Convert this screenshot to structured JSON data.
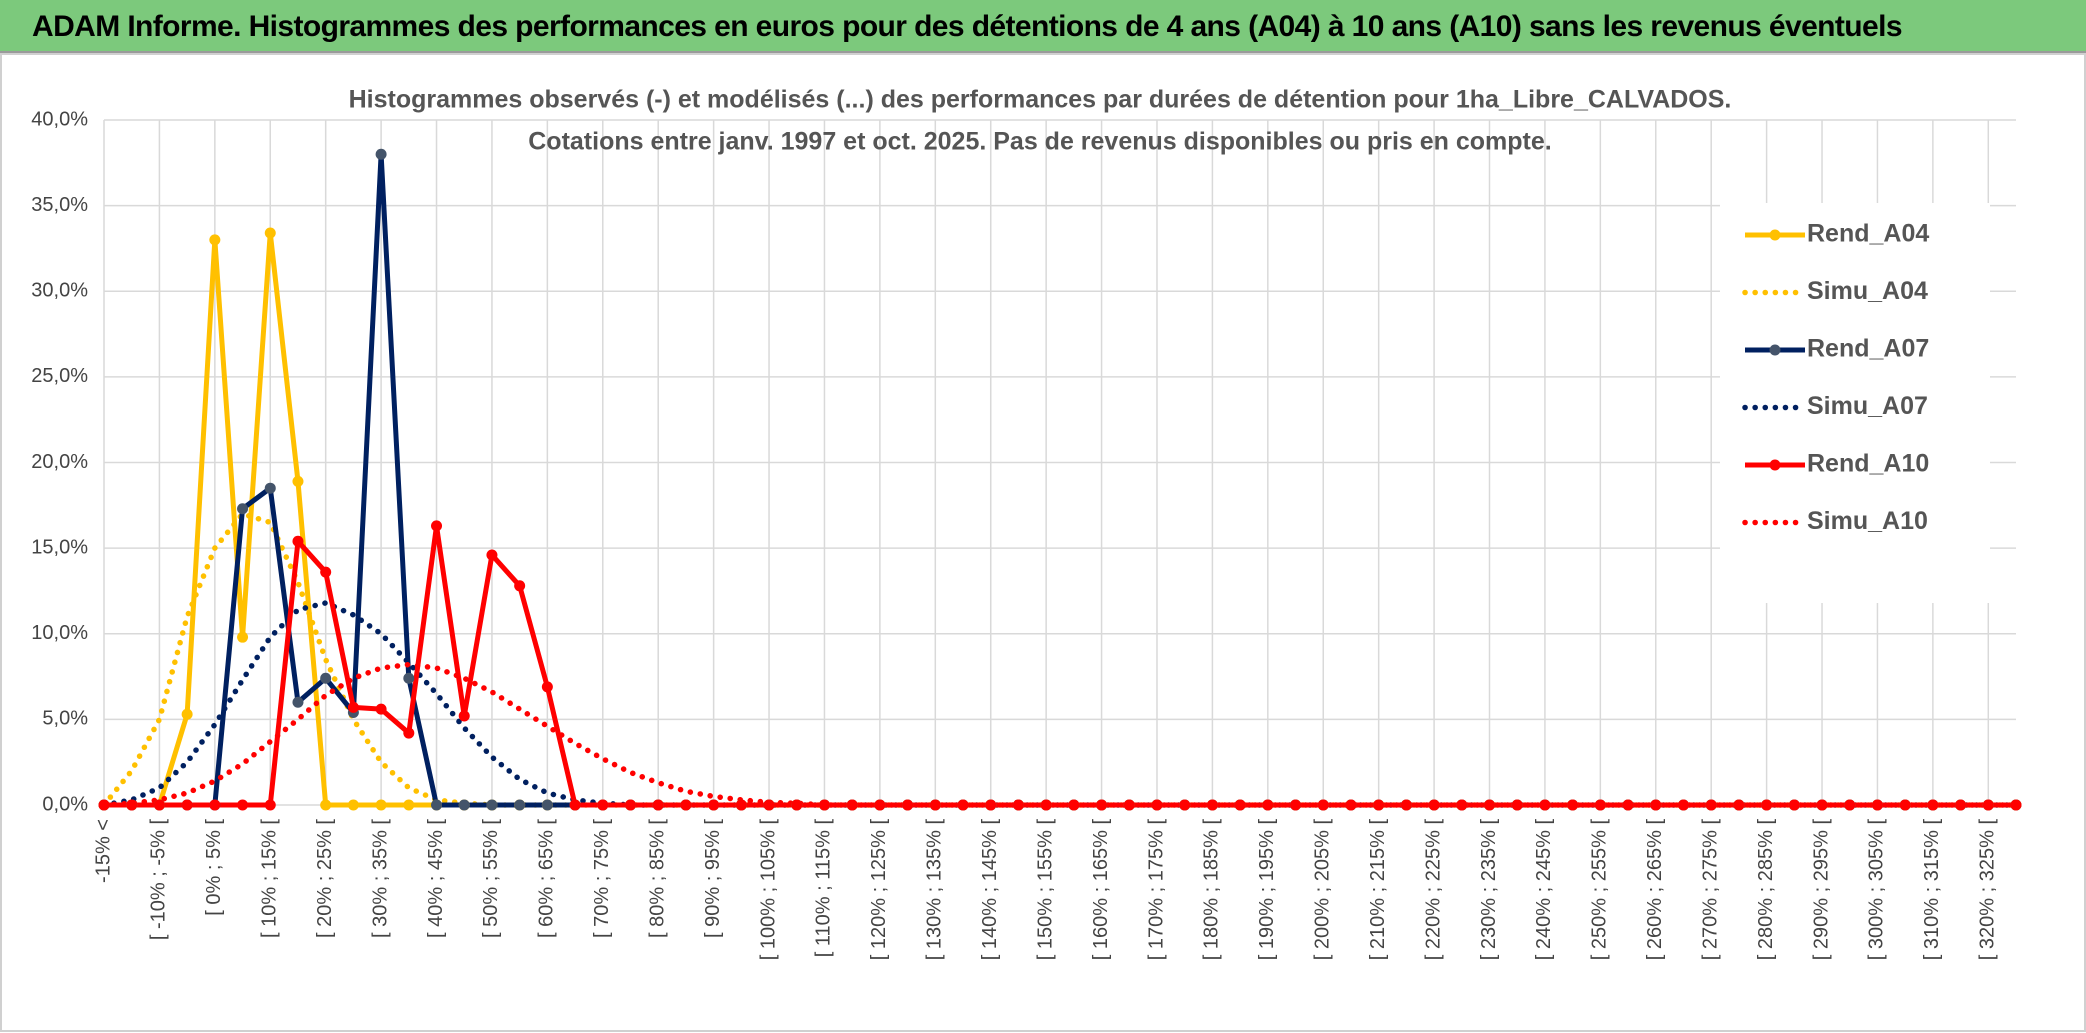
{
  "header": {
    "title": "ADAM Informe. Histogrammes des performances en euros pour des détentions de 4 ans (A04) à 10 ans (A10) sans les revenus éventuels"
  },
  "chart_data": {
    "type": "line",
    "title": [
      "Histogrammes observés (-) et modélisés (...) des performances par durées de détention pour 1ha_Libre_CALVADOS.",
      "Cotations entre janv. 1997 et oct. 2025. Pas de revenus disponibles ou pris en compte."
    ],
    "categories": [
      "-15% <",
      null,
      "[ -10% ; -5% [",
      null,
      "[ 0% ; 5% [",
      null,
      "[ 10% ; 15% [",
      null,
      "[ 20% ; 25% [",
      null,
      "[ 30% ; 35% [",
      null,
      "[ 40% ; 45% [",
      null,
      "[ 50% ; 55% [",
      null,
      "[ 60% ; 65% [",
      null,
      "[ 70% ; 75% [",
      null,
      "[ 80% ; 85% [",
      null,
      "[ 90% ; 95% [",
      null,
      "[ 100% ; 105% [",
      null,
      "[ 110% ; 115% [",
      null,
      "[ 120% ; 125% [",
      null,
      "[ 130% ; 135% [",
      null,
      "[ 140% ; 145% [",
      null,
      "[ 150% ; 155% [",
      null,
      "[ 160% ; 165% [",
      null,
      "[ 170% ; 175% [",
      null,
      "[ 180% ; 185% [",
      null,
      "[ 190% ; 195% [",
      null,
      "[ 200% ; 205% [",
      null,
      "[ 210% ; 215% [",
      null,
      "[ 220% ; 225% [",
      null,
      "[ 230% ; 235% [",
      null,
      "[ 240% ; 245% [",
      null,
      "[ 250% ; 255% [",
      null,
      "[ 260% ; 265% [",
      null,
      "[ 270% ; 275% [",
      null,
      "[ 280% ; 285% [",
      null,
      "[ 290% ; 295% [",
      null,
      "[ 300% ; 305% [",
      null,
      "[ 310% ; 315% [",
      null,
      "[ 320% ; 325% [",
      null
    ],
    "series": [
      {
        "name": "Rend_A04",
        "color": "#FFC000",
        "style": "solid",
        "markers": true,
        "values": [
          0,
          0,
          0,
          5.3,
          33.0,
          9.8,
          33.4,
          18.9,
          0,
          0,
          0,
          0,
          0,
          0,
          0,
          0,
          0,
          0,
          0,
          0,
          0,
          0,
          0,
          0,
          0,
          0,
          0,
          0,
          0,
          0,
          0,
          0,
          0,
          0,
          0,
          0,
          0,
          0,
          0,
          0,
          0,
          0,
          0,
          0,
          0,
          0,
          0,
          0,
          0,
          0,
          0,
          0,
          0,
          0,
          0,
          0,
          0,
          0,
          0,
          0,
          0,
          0,
          0,
          0,
          0,
          0,
          0,
          0,
          0,
          0
        ]
      },
      {
        "name": "Simu_A04",
        "color": "#FFC000",
        "style": "dotted",
        "markers": false,
        "values": [
          0,
          2.0,
          5.0,
          11.0,
          15.0,
          17.0,
          16.5,
          13.0,
          8.5,
          5.0,
          2.5,
          1.0,
          0.3,
          0.1,
          0,
          0,
          0,
          0,
          0,
          0,
          0,
          0,
          0,
          0,
          0,
          0,
          0,
          0,
          0,
          0,
          0,
          0,
          0,
          0,
          0,
          0,
          0,
          0,
          0,
          0,
          0,
          0,
          0,
          0,
          0,
          0,
          0,
          0,
          0,
          0,
          0,
          0,
          0,
          0,
          0,
          0,
          0,
          0,
          0,
          0,
          0,
          0,
          0,
          0,
          0,
          0,
          0,
          0,
          0,
          0
        ]
      },
      {
        "name": "Rend_A07",
        "color": "#002060",
        "marker_color": "#44546A",
        "style": "solid",
        "markers": true,
        "values": [
          0,
          0,
          0,
          0,
          0,
          17.3,
          18.5,
          6.0,
          7.4,
          5.4,
          38.0,
          7.4,
          0,
          0,
          0,
          0,
          0,
          0,
          0,
          0,
          0,
          0,
          0,
          0,
          0,
          0,
          0,
          0,
          0,
          0,
          0,
          0,
          0,
          0,
          0,
          0,
          0,
          0,
          0,
          0,
          0,
          0,
          0,
          0,
          0,
          0,
          0,
          0,
          0,
          0,
          0,
          0,
          0,
          0,
          0,
          0,
          0,
          0,
          0,
          0,
          0,
          0,
          0,
          0,
          0,
          0,
          0,
          0,
          0,
          0
        ]
      },
      {
        "name": "Simu_A07",
        "color": "#002060",
        "style": "dotted",
        "markers": false,
        "values": [
          0,
          0.3,
          1.0,
          2.5,
          4.7,
          7.3,
          9.8,
          11.4,
          11.8,
          11.1,
          10.0,
          8.3,
          6.5,
          4.5,
          2.8,
          1.5,
          0.7,
          0.3,
          0.1,
          0,
          0,
          0,
          0,
          0,
          0,
          0,
          0,
          0,
          0,
          0,
          0,
          0,
          0,
          0,
          0,
          0,
          0,
          0,
          0,
          0,
          0,
          0,
          0,
          0,
          0,
          0,
          0,
          0,
          0,
          0,
          0,
          0,
          0,
          0,
          0,
          0,
          0,
          0,
          0,
          0,
          0,
          0,
          0,
          0,
          0,
          0,
          0,
          0,
          0,
          0
        ]
      },
      {
        "name": "Rend_A10",
        "color": "#FF0000",
        "style": "solid",
        "markers": true,
        "values": [
          0,
          0,
          0,
          0,
          0,
          0,
          0,
          15.4,
          13.6,
          5.7,
          5.6,
          4.2,
          16.3,
          5.2,
          14.6,
          12.8,
          6.9,
          0,
          0,
          0,
          0,
          0,
          0,
          0,
          0,
          0,
          0,
          0,
          0,
          0,
          0,
          0,
          0,
          0,
          0,
          0,
          0,
          0,
          0,
          0,
          0,
          0,
          0,
          0,
          0,
          0,
          0,
          0,
          0,
          0,
          0,
          0,
          0,
          0,
          0,
          0,
          0,
          0,
          0,
          0,
          0,
          0,
          0,
          0,
          0,
          0,
          0,
          0,
          0,
          0
        ]
      },
      {
        "name": "Simu_A10",
        "color": "#FF0000",
        "style": "dotted",
        "markers": false,
        "values": [
          0,
          0.1,
          0.3,
          0.7,
          1.4,
          2.4,
          3.7,
          5.0,
          6.4,
          7.4,
          8.0,
          8.2,
          8.0,
          7.4,
          6.6,
          5.6,
          4.6,
          3.6,
          2.7,
          1.9,
          1.3,
          0.8,
          0.5,
          0.3,
          0.15,
          0.1,
          0,
          0,
          0,
          0,
          0,
          0,
          0,
          0,
          0,
          0,
          0,
          0,
          0,
          0,
          0,
          0,
          0,
          0,
          0,
          0,
          0,
          0,
          0,
          0,
          0,
          0,
          0,
          0,
          0,
          0,
          0,
          0,
          0,
          0,
          0,
          0,
          0,
          0,
          0,
          0,
          0,
          0,
          0,
          0
        ]
      }
    ],
    "ylim": [
      0,
      40
    ],
    "yticks": [
      {
        "value": 0,
        "label": "0,0%"
      },
      {
        "value": 5,
        "label": "5,0%"
      },
      {
        "value": 10,
        "label": "10,0%"
      },
      {
        "value": 15,
        "label": "15,0%"
      },
      {
        "value": 20,
        "label": "20,0%"
      },
      {
        "value": 25,
        "label": "25,0%"
      },
      {
        "value": 30,
        "label": "30,0%"
      },
      {
        "value": 35,
        "label": "35,0%"
      },
      {
        "value": 40,
        "label": "40,0%"
      }
    ],
    "grid": true,
    "legend": "right"
  }
}
